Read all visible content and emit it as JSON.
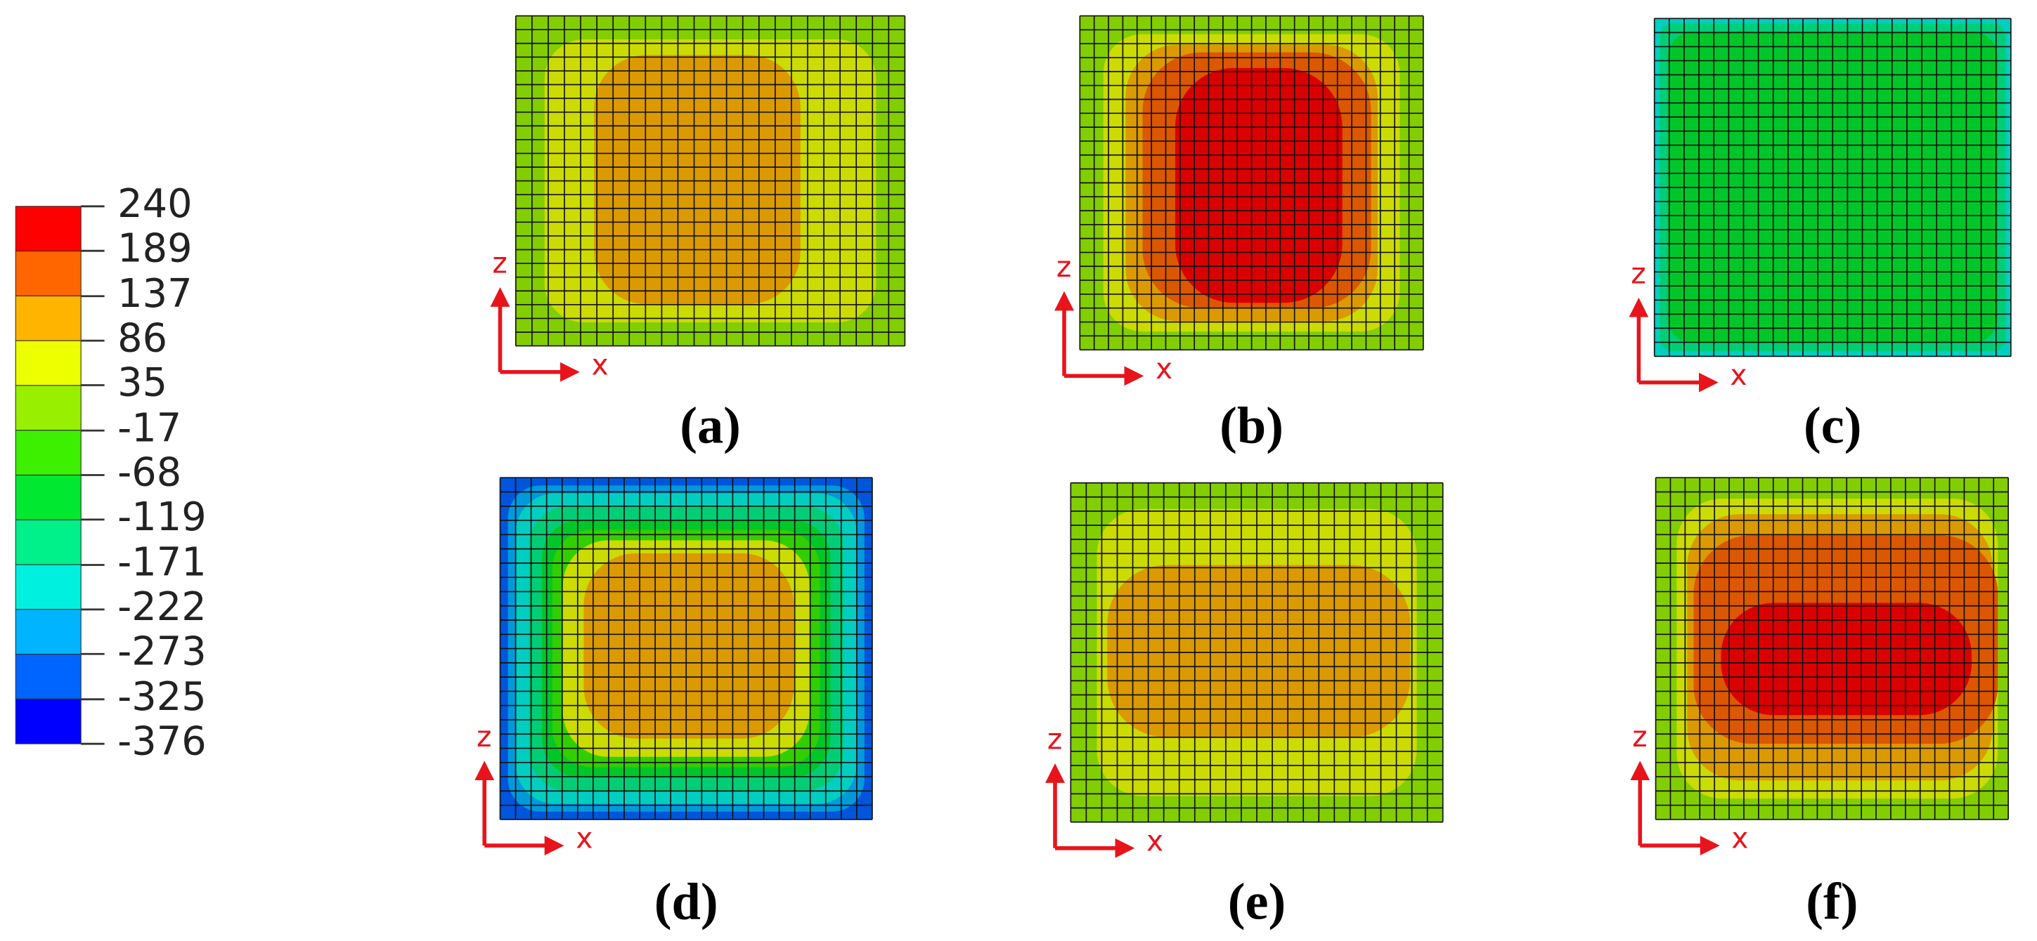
{
  "chart_data": {
    "type": "contour",
    "colorbar": {
      "clim": [
        -376,
        240
      ],
      "ticks": [
        240,
        189,
        137,
        86,
        35,
        -17,
        -68,
        -119,
        -171,
        -222,
        -273,
        -325,
        -376
      ],
      "colors": [
        "#ff0000",
        "#ff6600",
        "#ffb400",
        "#eeff00",
        "#98f000",
        "#3cf000",
        "#00e830",
        "#00f08a",
        "#00f0e0",
        "#00b4ff",
        "#0064ff",
        "#0000ff"
      ]
    },
    "axis_labels": {
      "vertical": "z",
      "horizontal": "x"
    },
    "panels": [
      {
        "label": "(a)"
      },
      {
        "label": "(b)"
      },
      {
        "label": "(c)"
      },
      {
        "label": "(d)"
      },
      {
        "label": "(e)"
      },
      {
        "label": "(f)"
      }
    ]
  }
}
